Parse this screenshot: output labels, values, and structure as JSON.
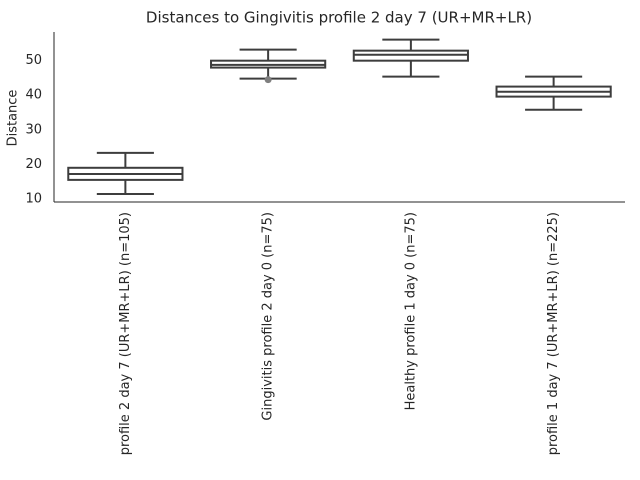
{
  "chart_data": {
    "type": "box",
    "title": "Distances to Gingivitis profile 2 day 7 (UR+MR+LR)",
    "ylabel": "Distance",
    "categories": [
      "profile 2 day 7 (UR+MR+LR) (n=105)",
      "Gingivitis profile 2 day 0 (n=75)",
      "Healthy profile 1 day 0 (n=75)",
      "profile 1 day 7 (UR+MR+LR) (n=225)"
    ],
    "boxes": [
      {
        "whislo": 11.4,
        "q1": 15.5,
        "med": 17.2,
        "q3": 19.0,
        "whishi": 23.3,
        "fliers": []
      },
      {
        "whislo": 44.8,
        "q1": 48.0,
        "med": 48.8,
        "q3": 50.0,
        "whishi": 53.2,
        "fliers": [
          44.5
        ]
      },
      {
        "whislo": 45.4,
        "q1": 50.0,
        "med": 51.7,
        "q3": 52.9,
        "whishi": 56.1,
        "fliers": []
      },
      {
        "whislo": 35.8,
        "q1": 39.6,
        "med": 41.0,
        "q3": 42.5,
        "whishi": 45.4,
        "fliers": []
      }
    ],
    "color": "#3d3d3d",
    "ylim": [
      9.1,
      58.3
    ],
    "yticks": [
      10,
      20,
      30,
      40,
      50
    ],
    "grid": false
  }
}
